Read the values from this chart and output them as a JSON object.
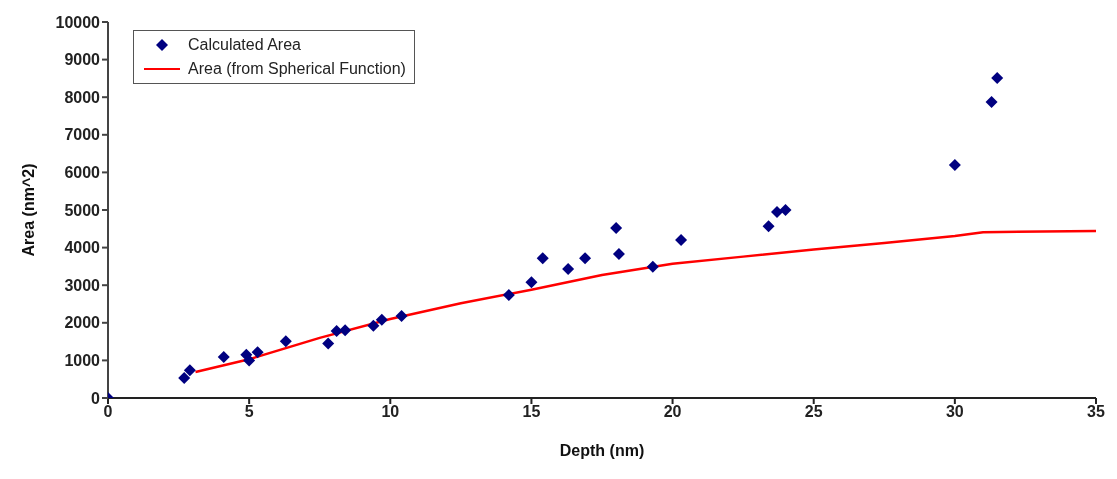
{
  "chart_data": {
    "type": "scatter",
    "xlabel": "Depth (nm)",
    "ylabel": "Area (nm^2)",
    "xlim": [
      0,
      35
    ],
    "xticks": [
      0,
      5,
      10,
      15,
      20,
      25,
      30,
      35
    ],
    "ylim": [
      0,
      10000
    ],
    "yticks": [
      0,
      1000,
      2000,
      3000,
      4000,
      5000,
      6000,
      7000,
      8000,
      9000,
      10000
    ],
    "grid": false,
    "legend": "top left",
    "series": [
      {
        "name": "Calculated Area",
        "marker": "diamond",
        "color": "#000080",
        "x": [
          0,
          2.7,
          2.9,
          4.1,
          4.9,
          5.0,
          5.3,
          6.3,
          7.8,
          8.1,
          8.4,
          9.4,
          9.7,
          10.4,
          14.2,
          15.0,
          15.4,
          16.3,
          16.9,
          18.0,
          18.1,
          19.3,
          20.3,
          23.4,
          23.7,
          24.0,
          30.0,
          31.3,
          31.5
        ],
        "values": [
          0,
          530,
          740,
          1090,
          1150,
          1000,
          1220,
          1510,
          1450,
          1780,
          1800,
          1920,
          2080,
          2180,
          2740,
          3080,
          3720,
          3430,
          3720,
          4520,
          3830,
          3490,
          4200,
          4570,
          4950,
          5000,
          6200,
          7870,
          8510
        ]
      },
      {
        "name": "Area (from Spherical Function)",
        "type": "line",
        "marker": "none",
        "line_style": "solid",
        "color": "#ff0000",
        "x": [
          3.1,
          5,
          7.5,
          10,
          12.5,
          15,
          17.5,
          20,
          22.5,
          25,
          27.5,
          30,
          31,
          35
        ],
        "values": [
          690,
          1030,
          1600,
          2100,
          2520,
          2880,
          3270,
          3570,
          3760,
          3950,
          4120,
          4310,
          4410,
          4440
        ]
      }
    ]
  }
}
